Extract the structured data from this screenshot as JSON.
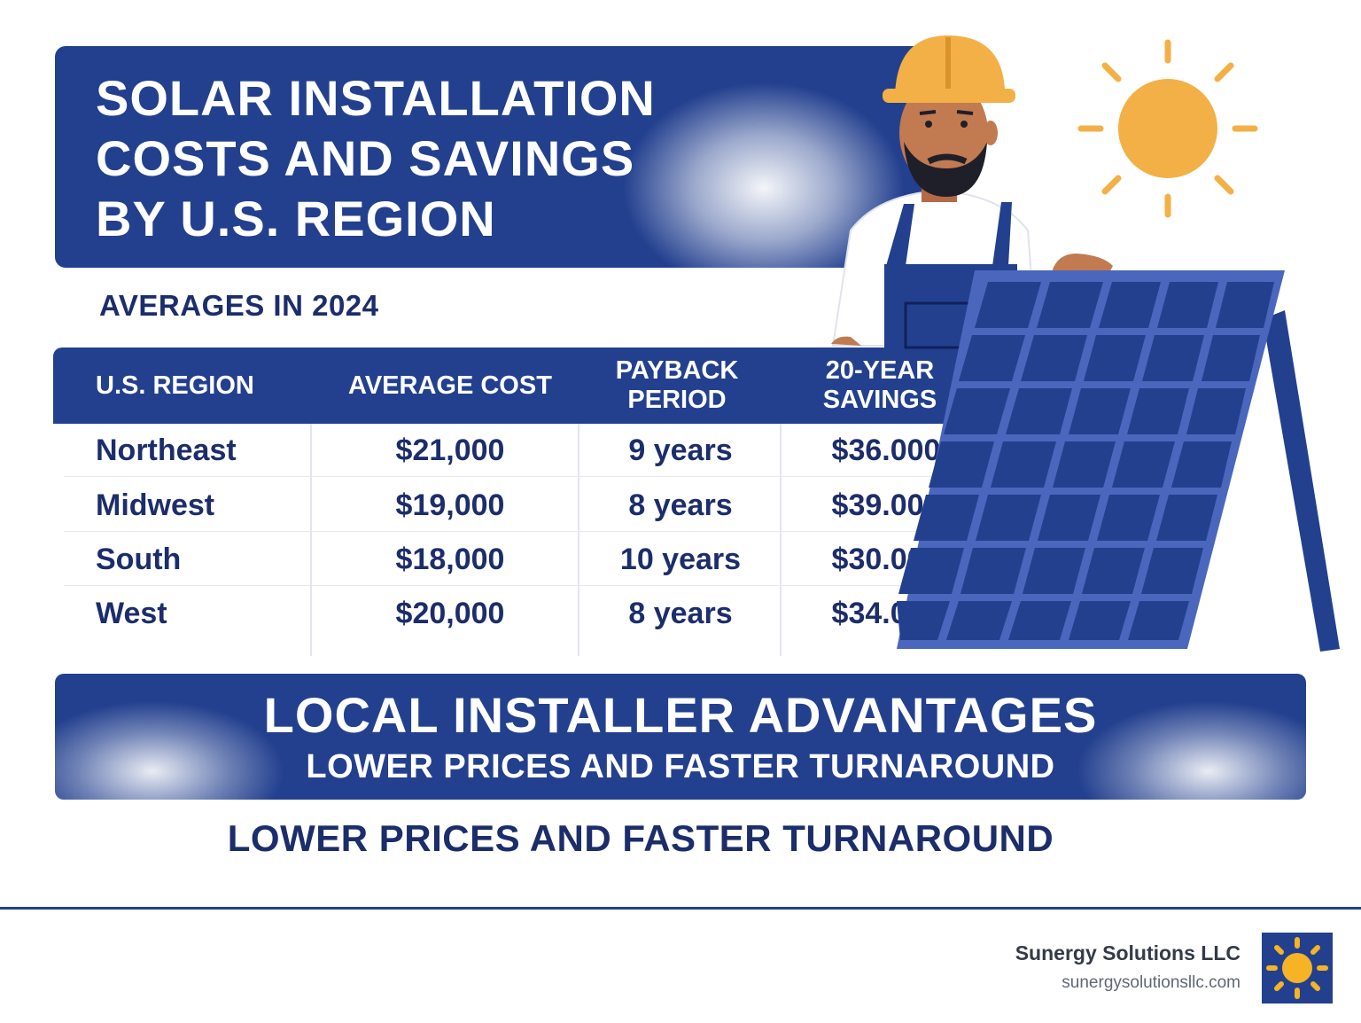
{
  "title": {
    "line1": "SOLAR INSTALLATION",
    "line2": "COSTS AND SAVINGS",
    "line3": "BY U.S. REGION"
  },
  "subtitle": "AVERAGES IN 2024",
  "table": {
    "headers": [
      {
        "line1": "U.S. REGION",
        "line2": ""
      },
      {
        "line1": "AVERAGE COST",
        "line2": ""
      },
      {
        "line1": "PAYBACK",
        "line2": "PERIOD"
      },
      {
        "line1": "20-YEAR",
        "line2": "SAVINGS"
      }
    ],
    "rows": [
      {
        "region": "Northeast",
        "cost": "$21,000",
        "payback": "9 years",
        "savings": "$36.000"
      },
      {
        "region": "Midwest",
        "cost": "$19,000",
        "payback": "8 years",
        "savings": "$39.000"
      },
      {
        "region": "South",
        "cost": "$18,000",
        "payback": "10 years",
        "savings": "$30.000"
      },
      {
        "region": "West",
        "cost": "$20,000",
        "payback": "8 years",
        "savings": "$34.000"
      }
    ]
  },
  "cta": {
    "title": "LOCAL INSTALLER ADVANTAGES",
    "subtitle": "LOWER PRICES AND FASTER TURNAROUND"
  },
  "tagline": "LOWER PRICES AND FASTER TURNAROUND",
  "brand": {
    "name": "Sunergy Solutions LLC",
    "url": "sunergysolutionsllc.com"
  },
  "colors": {
    "primary_blue": "#23408f",
    "text_navy": "#1c2d6b",
    "sun_orange": "#f3b047",
    "panel_blue": "#4a66bd"
  },
  "icons": [
    "sun-icon",
    "worker-illustration",
    "solar-panel-illustration",
    "brand-logo-sun-icon"
  ]
}
